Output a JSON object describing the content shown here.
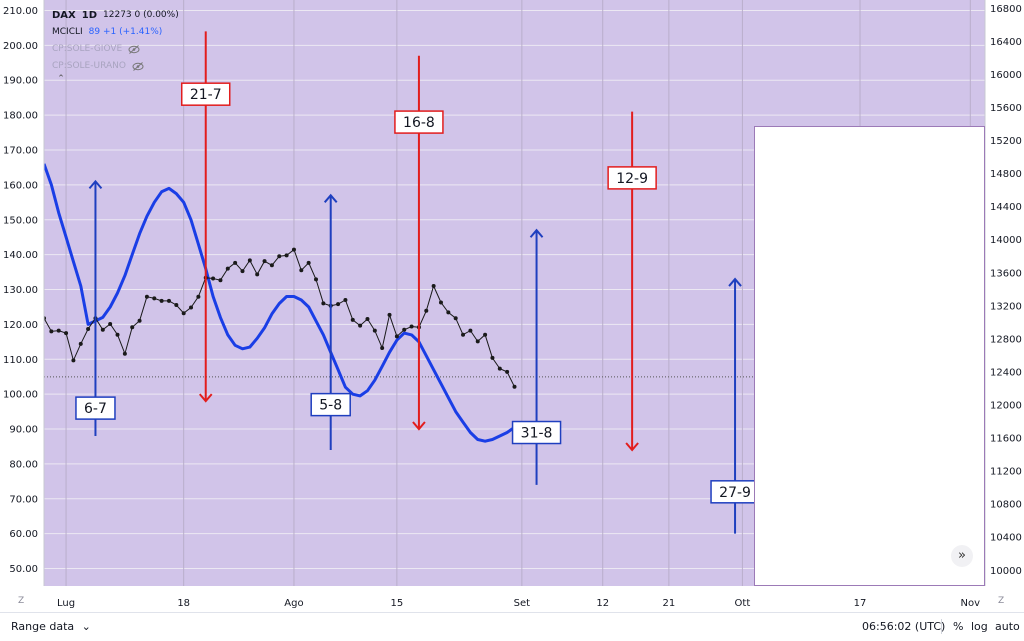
{
  "legend": {
    "symbol": "DAX",
    "interval": "1D",
    "values": "12273 0 (0.00%)",
    "indicator_name": "MCICLI",
    "indicator_values": "89 +1 (+1.41%)",
    "hidden_studies": [
      "CP:SOLE-GIOVE",
      "CP:SOLE-URANO"
    ]
  },
  "colors": {
    "plot_bg": "#d1c4e9",
    "cycle_line": "#1a3ee6",
    "price_line": "#1a1a1a",
    "up_arrow": "#1f3fbf",
    "down_arrow": "#e21d1d",
    "label_up_border": "#1f3fbf",
    "label_down_border": "#e21d1d"
  },
  "bottom": {
    "range_label": "Range data",
    "clock": "06:56:02 (UTC)",
    "percent_label": "%",
    "log_label": "log",
    "auto_label": "auto"
  },
  "corner_marks": {
    "left": "Z",
    "right": "Z"
  },
  "chart_data": {
    "type": "line",
    "x_axis": {
      "ticks": [
        {
          "label": "Lug",
          "day": 0
        },
        {
          "label": "18",
          "day": 16
        },
        {
          "label": "Ago",
          "day": 31
        },
        {
          "label": "15",
          "day": 45
        },
        {
          "label": "Set",
          "day": 62
        },
        {
          "label": "12",
          "day": 73
        },
        {
          "label": "21",
          "day": 82
        },
        {
          "label": "Ott",
          "day": 92
        },
        {
          "label": "17",
          "day": 108
        },
        {
          "label": "Nov",
          "day": 123
        }
      ],
      "xlim": [
        -3,
        125
      ]
    },
    "y_left": {
      "label": "MCICLI",
      "ylim": [
        45,
        213
      ],
      "ticks": [
        "50.00",
        "60.00",
        "70.00",
        "80.00",
        "90.00",
        "100.00",
        "110.00",
        "120.00",
        "130.00",
        "140.00",
        "150.00",
        "160.00",
        "170.00",
        "180.00",
        "190.00",
        "200.00",
        "210.00"
      ]
    },
    "y_right": {
      "label": "DAX",
      "ylim": [
        9810,
        16900
      ],
      "ticks": [
        "10000",
        "10400",
        "10800",
        "11200",
        "11600",
        "12000",
        "12400",
        "12800",
        "13200",
        "13600",
        "14000",
        "14400",
        "14800",
        "15200",
        "15600",
        "16000",
        "16400",
        "16800"
      ]
    },
    "reference_line": 12340,
    "series": [
      {
        "name": "MCICLI",
        "axis": "left",
        "points": [
          [
            -3,
            166
          ],
          [
            -2,
            160
          ],
          [
            -1,
            152
          ],
          [
            0,
            145
          ],
          [
            1,
            138
          ],
          [
            2,
            131
          ],
          [
            3,
            120
          ],
          [
            4,
            121
          ],
          [
            5,
            122
          ],
          [
            6,
            125
          ],
          [
            7,
            129
          ],
          [
            8,
            134
          ],
          [
            9,
            140
          ],
          [
            10,
            146
          ],
          [
            11,
            151
          ],
          [
            12,
            155
          ],
          [
            13,
            158
          ],
          [
            14,
            159
          ],
          [
            15,
            157.5
          ],
          [
            16,
            155
          ],
          [
            17,
            150
          ],
          [
            18,
            143
          ],
          [
            19,
            136
          ],
          [
            20,
            128
          ],
          [
            21,
            122
          ],
          [
            22,
            117
          ],
          [
            23,
            114
          ],
          [
            24,
            113
          ],
          [
            25,
            113.5
          ],
          [
            26,
            116
          ],
          [
            27,
            119
          ],
          [
            28,
            123
          ],
          [
            29,
            126
          ],
          [
            30,
            128
          ],
          [
            31,
            128
          ],
          [
            32,
            127
          ],
          [
            33,
            125
          ],
          [
            34,
            121
          ],
          [
            35,
            117
          ],
          [
            36,
            112
          ],
          [
            37,
            107
          ],
          [
            38,
            102
          ],
          [
            39,
            100
          ],
          [
            40,
            99.5
          ],
          [
            41,
            101
          ],
          [
            42,
            104
          ],
          [
            43,
            108
          ],
          [
            44,
            112
          ],
          [
            45,
            115.5
          ],
          [
            46,
            117.5
          ],
          [
            47,
            117
          ],
          [
            48,
            115
          ],
          [
            49,
            111
          ],
          [
            50,
            107
          ],
          [
            51,
            103
          ],
          [
            52,
            99
          ],
          [
            53,
            95
          ],
          [
            54,
            92
          ],
          [
            55,
            89
          ],
          [
            56,
            87
          ],
          [
            57,
            86.5
          ],
          [
            58,
            87
          ],
          [
            59,
            88
          ],
          [
            60,
            89
          ],
          [
            61,
            90.5
          ]
        ]
      },
      {
        "name": "DAX",
        "axis": "right",
        "points": [
          [
            -3,
            13050
          ],
          [
            -2,
            12890
          ],
          [
            -1,
            12900
          ],
          [
            0,
            12870
          ],
          [
            1,
            12540
          ],
          [
            2,
            12740
          ],
          [
            3,
            12920
          ],
          [
            4,
            13050
          ],
          [
            5,
            12910
          ],
          [
            6,
            12980
          ],
          [
            7,
            12850
          ],
          [
            8,
            12620
          ],
          [
            9,
            12940
          ],
          [
            10,
            13020
          ],
          [
            11,
            13310
          ],
          [
            12,
            13290
          ],
          [
            13,
            13260
          ],
          [
            14,
            13260
          ],
          [
            15,
            13210
          ],
          [
            16,
            13110
          ],
          [
            17,
            13180
          ],
          [
            18,
            13310
          ],
          [
            19,
            13540
          ],
          [
            20,
            13530
          ],
          [
            21,
            13510
          ],
          [
            22,
            13650
          ],
          [
            23,
            13720
          ],
          [
            24,
            13620
          ],
          [
            25,
            13750
          ],
          [
            26,
            13580
          ],
          [
            27,
            13740
          ],
          [
            28,
            13690
          ],
          [
            29,
            13800
          ],
          [
            30,
            13810
          ],
          [
            31,
            13880
          ],
          [
            32,
            13630
          ],
          [
            33,
            13720
          ],
          [
            34,
            13520
          ],
          [
            35,
            13230
          ],
          [
            36,
            13200
          ],
          [
            37,
            13220
          ],
          [
            38,
            13270
          ],
          [
            39,
            13030
          ],
          [
            40,
            12960
          ],
          [
            41,
            13040
          ],
          [
            42,
            12900
          ],
          [
            43,
            12690
          ],
          [
            44,
            13090
          ],
          [
            45,
            12830
          ],
          [
            46,
            12910
          ],
          [
            47,
            12950
          ],
          [
            48,
            12940
          ],
          [
            49,
            13140
          ],
          [
            50,
            13440
          ],
          [
            51,
            13240
          ],
          [
            52,
            13120
          ],
          [
            53,
            13050
          ],
          [
            54,
            12850
          ],
          [
            55,
            12900
          ],
          [
            56,
            12770
          ],
          [
            57,
            12850
          ],
          [
            58,
            12570
          ],
          [
            59,
            12440
          ],
          [
            60,
            12400
          ],
          [
            61,
            12220
          ]
        ]
      }
    ],
    "cycle_markers": [
      {
        "label": "6-7",
        "direction": "up",
        "day": 4,
        "y_from": 88,
        "y_to": 161,
        "label_y": 96
      },
      {
        "label": "21-7",
        "direction": "down",
        "day": 19,
        "y_from": 204,
        "y_to": 98,
        "label_y": 186
      },
      {
        "label": "5-8",
        "direction": "up",
        "day": 36,
        "y_from": 84,
        "y_to": 157,
        "label_y": 97
      },
      {
        "label": "16-8",
        "direction": "down",
        "day": 48,
        "y_from": 197,
        "y_to": 90,
        "label_y": 178
      },
      {
        "label": "31-8",
        "direction": "up",
        "day": 64,
        "y_from": 74,
        "y_to": 147,
        "label_y": 89
      },
      {
        "label": "12-9",
        "direction": "down",
        "day": 77,
        "y_from": 181,
        "y_to": 84,
        "label_y": 162
      },
      {
        "label": "27-9",
        "direction": "up",
        "day": 91,
        "y_from": 60,
        "y_to": 133,
        "label_y": 72
      }
    ]
  }
}
